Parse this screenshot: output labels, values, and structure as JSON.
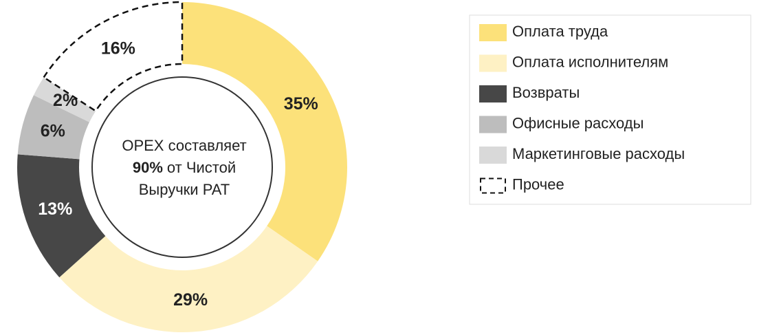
{
  "chart_data": {
    "type": "donut",
    "categories": [
      "Оплата труда",
      "Оплата исполнителям",
      "Возвраты",
      "Офисные расходы",
      "Маркетинговые расходы",
      "Прочее"
    ],
    "values": [
      35,
      29,
      13,
      6,
      2,
      16
    ],
    "value_labels": [
      "35%",
      "29%",
      "13%",
      "6%",
      "2%",
      "16%"
    ],
    "colors": [
      "#fce17a",
      "#fef1c4",
      "#474747",
      "#bdbdbd",
      "#d9d9d9",
      "dashed"
    ],
    "center_text": [
      "OPEX составляет",
      "90%",
      "от Чистой",
      "Выручки PAT"
    ],
    "legend": "right"
  }
}
